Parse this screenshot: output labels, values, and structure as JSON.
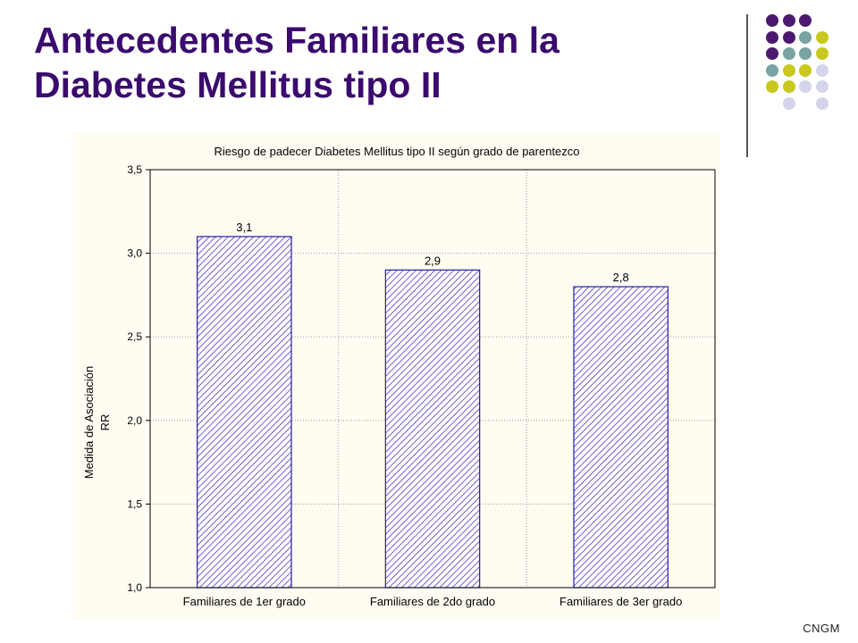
{
  "slide": {
    "title_line1": "Antecedentes Familiares en la",
    "title_line2": "Diabetes Mellitus tipo II",
    "footer": "CNGM"
  },
  "colors": {
    "title": "#3a0a6e",
    "bar_stroke": "#2a1aa0",
    "bar_hatch": "#4a3ac8",
    "dots": {
      "purple": "#4b1a6e",
      "teal": "#7aa3a3",
      "olive": "#c8c81e",
      "lavender": "#d4d4ea"
    }
  },
  "decoration": {
    "dot_grid": [
      [
        "purple",
        "purple",
        "purple",
        null
      ],
      [
        "purple",
        "purple",
        "teal",
        "olive"
      ],
      [
        "purple",
        "teal",
        "teal",
        "olive"
      ],
      [
        "teal",
        "olive",
        "olive",
        "lavender"
      ],
      [
        "olive",
        "olive",
        "lavender",
        "lavender"
      ],
      [
        null,
        "lavender",
        null,
        "lavender"
      ]
    ]
  },
  "chart_data": {
    "type": "bar",
    "title": "Riesgo de padecer Diabetes Mellitus tipo II según grado de parentezco",
    "ylabel_line1": "Medida de Asociación",
    "ylabel_line2": "RR",
    "categories": [
      "Familiares de 1er grado",
      "Familiares de 2do grado",
      "Familiares de 3er grado"
    ],
    "values": [
      3.1,
      2.9,
      2.8
    ],
    "value_labels": [
      "3,1",
      "2,9",
      "2,8"
    ],
    "ylim": [
      1.0,
      3.5
    ],
    "yticks": [
      1.0,
      1.5,
      2.0,
      2.5,
      3.0,
      3.5
    ],
    "ytick_labels": [
      "1,0",
      "1,5",
      "2,0",
      "2,5",
      "3,0",
      "3,5"
    ],
    "grid": true,
    "legend": "none"
  }
}
